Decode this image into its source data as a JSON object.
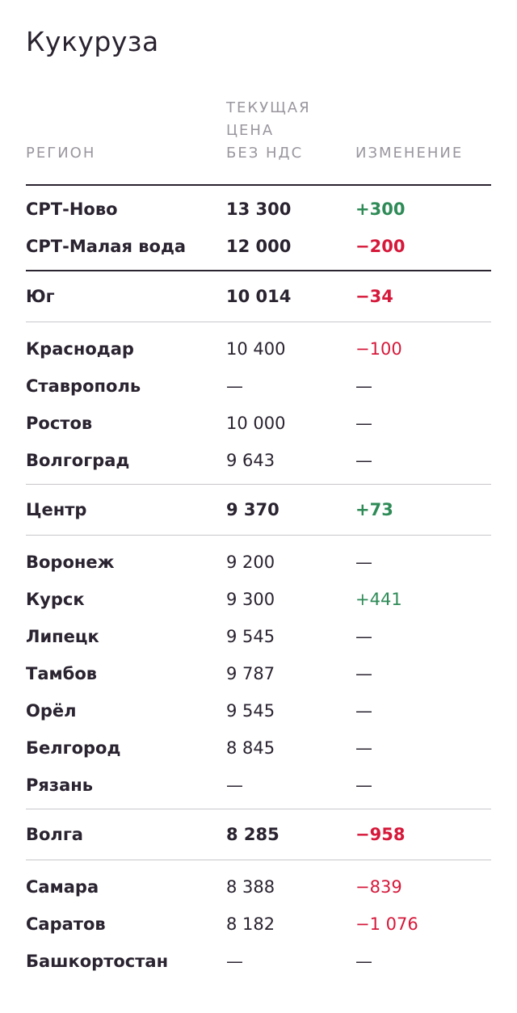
{
  "title": "Кукуруза",
  "header": {
    "region": "РЕГИОН",
    "price": "ТЕКУЩАЯ\nЦЕНА\nБЕЗ НДС",
    "change": "ИЗМЕНЕНИЕ"
  },
  "groups": [
    {
      "rows": [
        {
          "region": "СРТ-Ново",
          "price": "13 300",
          "change": "+300",
          "tone": "pos",
          "bold": true
        },
        {
          "region": "СРТ-Малая вода",
          "price": "12 000",
          "change": "−200",
          "tone": "neg",
          "bold": true
        }
      ]
    },
    {
      "summary": {
        "region": "Юг",
        "price": "10 014",
        "change": "−34",
        "tone": "neg"
      },
      "rows": [
        {
          "region": "Краснодар",
          "price": "10 400",
          "change": "−100",
          "tone": "neg"
        },
        {
          "region": "Ставрополь",
          "price": "—",
          "change": "—",
          "tone": "neu"
        },
        {
          "region": "Ростов",
          "price": "10 000",
          "change": "—",
          "tone": "neu"
        },
        {
          "region": "Волгоград",
          "price": "9 643",
          "change": "—",
          "tone": "neu"
        }
      ]
    },
    {
      "summary": {
        "region": "Центр",
        "price": "9 370",
        "change": "+73",
        "tone": "pos"
      },
      "rows": [
        {
          "region": "Воронеж",
          "price": "9 200",
          "change": "—",
          "tone": "neu"
        },
        {
          "region": "Курск",
          "price": "9 300",
          "change": "+441",
          "tone": "pos"
        },
        {
          "region": "Липецк",
          "price": "9 545",
          "change": "—",
          "tone": "neu"
        },
        {
          "region": "Тамбов",
          "price": "9 787",
          "change": "—",
          "tone": "neu"
        },
        {
          "region": "Орёл",
          "price": "9 545",
          "change": "—",
          "tone": "neu"
        },
        {
          "region": "Белгород",
          "price": "8 845",
          "change": "—",
          "tone": "neu"
        },
        {
          "region": "Рязань",
          "price": "—",
          "change": "—",
          "tone": "neu"
        }
      ]
    },
    {
      "summary": {
        "region": "Волга",
        "price": "8 285",
        "change": "−958",
        "tone": "neg"
      },
      "rows": [
        {
          "region": "Самара",
          "price": "8 388",
          "change": "−839",
          "tone": "neg"
        },
        {
          "region": "Саратов",
          "price": "8 182",
          "change": "−1 076",
          "tone": "neg"
        },
        {
          "region": "Башкортостан",
          "price": "—",
          "change": "—",
          "tone": "neu"
        }
      ]
    }
  ],
  "colors": {
    "positive": "#2e8b57",
    "negative": "#d6183a",
    "text": "#2a2330"
  }
}
